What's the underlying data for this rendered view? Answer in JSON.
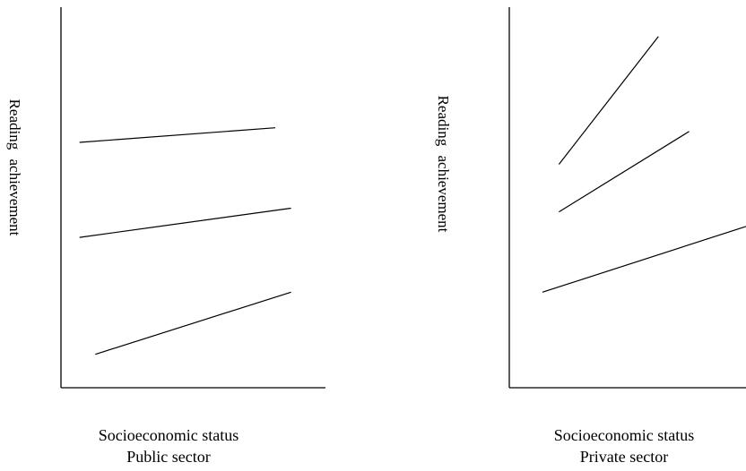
{
  "chart_data": [
    {
      "type": "line",
      "xlabel": "Socioeconomic status",
      "ylabel": "Reading achievement",
      "subtitle": "Public sector",
      "xlim": [
        0,
        100
      ],
      "ylim": [
        0,
        100
      ],
      "grid": false,
      "axes": "left and bottom only, no ticks",
      "series": [
        {
          "x": [
            7,
            81
          ],
          "y": [
            62,
            66
          ]
        },
        {
          "x": [
            7,
            87
          ],
          "y": [
            36,
            44
          ]
        },
        {
          "x": [
            13,
            87
          ],
          "y": [
            4,
            21
          ]
        }
      ]
    },
    {
      "type": "line",
      "xlabel": "Socioeconomic status",
      "ylabel": "Reading achievement",
      "subtitle": "Private sector",
      "xlim": [
        0,
        100
      ],
      "ylim": [
        0,
        100
      ],
      "grid": false,
      "axes": "left and bottom only, no ticks",
      "series": [
        {
          "x": [
            21,
            63
          ],
          "y": [
            56,
            91
          ]
        },
        {
          "x": [
            21,
            76
          ],
          "y": [
            43,
            65
          ]
        },
        {
          "x": [
            14,
            100
          ],
          "y": [
            21,
            39
          ]
        }
      ]
    }
  ],
  "colors": {
    "line": "#000000",
    "background": "#ffffff"
  }
}
